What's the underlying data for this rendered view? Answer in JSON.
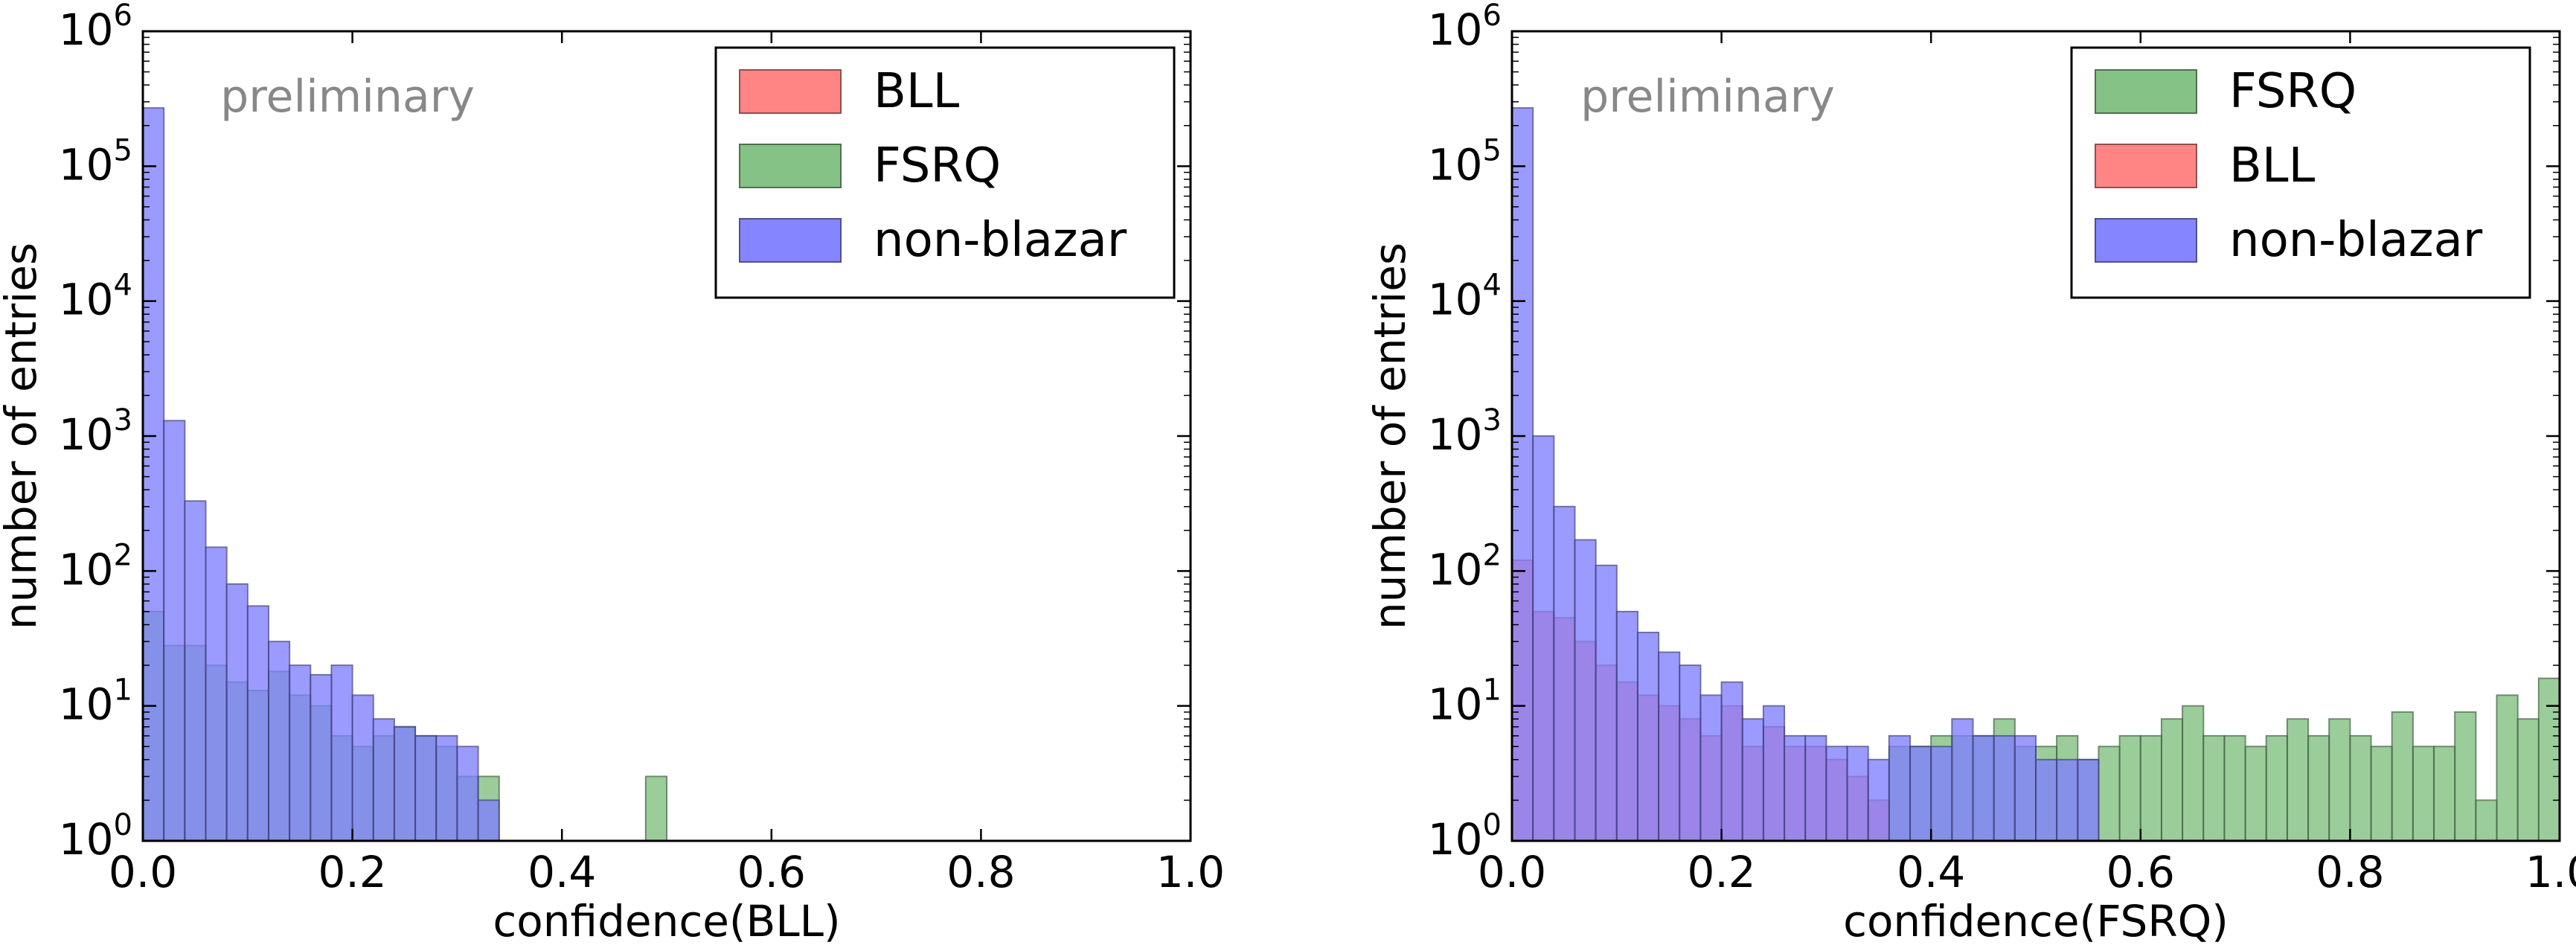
{
  "chart_data": [
    {
      "type": "bar",
      "histogram": true,
      "xlabel": "confidence(BLL)",
      "ylabel": "number of entries",
      "xlim": [
        0,
        1
      ],
      "ylim": [
        1,
        1000000
      ],
      "yscale": "log",
      "xticks": [
        "0.0",
        "0.2",
        "0.4",
        "0.6",
        "0.8",
        "1.0"
      ],
      "yticks": [
        {
          "base": "10",
          "exp": "0"
        },
        {
          "base": "10",
          "exp": "1"
        },
        {
          "base": "10",
          "exp": "2"
        },
        {
          "base": "10",
          "exp": "3"
        },
        {
          "base": "10",
          "exp": "4"
        },
        {
          "base": "10",
          "exp": "5"
        },
        {
          "base": "10",
          "exp": "6"
        }
      ],
      "annotation": "preliminary",
      "legend": {
        "position": "top-right"
      },
      "bins": 50,
      "series": [
        {
          "name": "BLL",
          "color": "#ff7f7f",
          "counts": [
            1,
            1,
            1,
            1,
            1,
            1,
            1,
            1,
            1,
            1,
            1,
            1,
            1,
            1,
            1,
            1,
            1,
            1,
            1,
            1,
            1,
            1,
            1,
            1,
            1,
            1,
            1,
            1,
            1,
            1,
            1,
            1,
            1,
            1,
            1,
            1,
            1,
            1,
            1,
            1,
            1,
            1,
            1,
            1,
            1,
            1,
            1,
            1,
            1,
            1
          ]
        },
        {
          "name": "FSRQ",
          "color": "#7fbf7f",
          "counts": [
            50,
            28,
            28,
            20,
            15,
            13,
            18,
            12,
            10,
            6,
            5,
            6,
            7,
            6,
            5,
            3,
            3,
            1,
            1,
            1,
            1,
            1,
            1,
            1,
            3,
            1,
            1,
            1,
            1,
            1,
            1,
            1,
            1,
            1,
            1,
            1,
            1,
            1,
            1,
            1,
            1,
            1,
            1,
            1,
            1,
            1,
            1,
            1,
            1,
            1
          ]
        },
        {
          "name": "non-blazar",
          "color": "#7f7fff",
          "counts": [
            270000,
            1300,
            330,
            150,
            80,
            55,
            30,
            20,
            17,
            20,
            12,
            8,
            7,
            6,
            6,
            5,
            2,
            0,
            0,
            0,
            0,
            0,
            0,
            0,
            0,
            0,
            0,
            0,
            0,
            0,
            0,
            0,
            0,
            0,
            0,
            0,
            0,
            0,
            0,
            0,
            0,
            0,
            0,
            0,
            0,
            0,
            0,
            0,
            0,
            0
          ]
        }
      ]
    },
    {
      "type": "bar",
      "histogram": true,
      "xlabel": "confidence(FSRQ)",
      "ylabel": "number of entries",
      "xlim": [
        0,
        1
      ],
      "ylim": [
        1,
        1000000
      ],
      "yscale": "log",
      "xticks": [
        "0.0",
        "0.2",
        "0.4",
        "0.6",
        "0.8",
        "1.0"
      ],
      "yticks": [
        {
          "base": "10",
          "exp": "0"
        },
        {
          "base": "10",
          "exp": "1"
        },
        {
          "base": "10",
          "exp": "2"
        },
        {
          "base": "10",
          "exp": "3"
        },
        {
          "base": "10",
          "exp": "4"
        },
        {
          "base": "10",
          "exp": "5"
        },
        {
          "base": "10",
          "exp": "6"
        }
      ],
      "annotation": "preliminary",
      "legend": {
        "position": "top-right"
      },
      "bins": 50,
      "series": [
        {
          "name": "FSRQ",
          "color": "#7fbf7f",
          "counts": [
            1,
            1,
            1,
            1,
            1,
            1,
            1,
            1,
            1,
            1,
            1,
            1,
            1,
            1,
            1,
            1,
            1,
            1,
            5,
            5,
            6,
            6,
            6,
            8,
            5,
            5,
            6,
            4,
            5,
            6,
            6,
            8,
            10,
            6,
            6,
            5,
            6,
            8,
            6,
            8,
            6,
            5,
            9,
            5,
            5,
            9,
            2,
            12,
            8,
            16
          ]
        },
        {
          "name": "BLL",
          "color": "#ff7f7f",
          "counts": [
            120,
            50,
            45,
            30,
            20,
            15,
            12,
            10,
            8,
            6,
            10,
            5,
            7,
            5,
            5,
            4,
            3,
            2,
            1,
            1,
            1,
            1,
            1,
            1,
            1,
            1,
            1,
            1,
            1,
            1,
            1,
            1,
            1,
            1,
            1,
            1,
            1,
            1,
            1,
            1,
            1,
            1,
            1,
            1,
            1,
            1,
            1,
            1,
            1,
            1
          ]
        },
        {
          "name": "non-blazar",
          "color": "#7f7fff",
          "counts": [
            270000,
            1000,
            300,
            170,
            110,
            50,
            35,
            25,
            20,
            12,
            15,
            8,
            10,
            6,
            6,
            5,
            5,
            4,
            6,
            5,
            5,
            8,
            6,
            6,
            6,
            4,
            4,
            4,
            1,
            1,
            1,
            1,
            1,
            1,
            1,
            1,
            1,
            1,
            1,
            1,
            1,
            1,
            1,
            1,
            1,
            1,
            1,
            1,
            1,
            1
          ]
        }
      ]
    }
  ]
}
